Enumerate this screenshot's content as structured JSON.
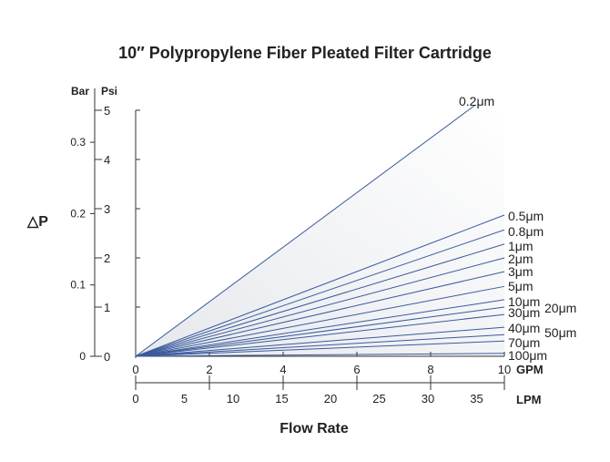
{
  "chart_data": {
    "type": "line",
    "title": "10″  Polypropylene Fiber Pleated Filter Cartridge",
    "xlabel": "Flow Rate",
    "ylabel": "△P",
    "x_unit": "GPM",
    "x2_unit": "LPM",
    "y_unit_left": "Bar",
    "y_unit_right": "Psi",
    "xlim": [
      0,
      10
    ],
    "ylim": [
      0,
      5
    ],
    "x_ticks": [
      "0",
      "2",
      "4",
      "6",
      "8",
      "10"
    ],
    "x2_ticks": [
      "0",
      "5",
      "10",
      "15",
      "20",
      "25",
      "30",
      "35"
    ],
    "x2_tick_values": [
      0,
      5,
      10,
      15,
      20,
      25,
      30,
      35
    ],
    "lpm_per_gpm": 3.785,
    "y_ticks_psi": [
      "0",
      "1",
      "2",
      "3",
      "4",
      "5"
    ],
    "y_ticks_bar": [
      "0",
      "0.1",
      "0.2",
      "0.3"
    ],
    "y_bar_values": [
      0,
      0.1,
      0.2,
      0.3
    ],
    "psi_per_bar": 14.5,
    "grid": false,
    "line_color": "#3a5a9c",
    "series": [
      {
        "name": "0.2μm",
        "x": [
          0,
          9.2
        ],
        "y": [
          0,
          5.1
        ]
      },
      {
        "name": "0.5μm",
        "x": [
          0,
          10
        ],
        "y": [
          0,
          2.87
        ]
      },
      {
        "name": "0.8μm",
        "x": [
          0,
          10
        ],
        "y": [
          0,
          2.57
        ]
      },
      {
        "name": "1μm",
        "x": [
          0,
          10
        ],
        "y": [
          0,
          2.28
        ]
      },
      {
        "name": "2μm",
        "x": [
          0,
          10
        ],
        "y": [
          0,
          2.0
        ]
      },
      {
        "name": "3μm",
        "x": [
          0,
          10
        ],
        "y": [
          0,
          1.72
        ]
      },
      {
        "name": "5μm",
        "x": [
          0,
          10
        ],
        "y": [
          0,
          1.42
        ]
      },
      {
        "name": "10μm",
        "x": [
          0,
          10
        ],
        "y": [
          0,
          1.15
        ]
      },
      {
        "name": "20μm",
        "x": [
          0,
          10
        ],
        "y": [
          0,
          1.0
        ]
      },
      {
        "name": "30μm",
        "x": [
          0,
          10
        ],
        "y": [
          0,
          0.85
        ]
      },
      {
        "name": "40μm",
        "x": [
          0,
          10
        ],
        "y": [
          0,
          0.59
        ]
      },
      {
        "name": "50μm",
        "x": [
          0,
          10
        ],
        "y": [
          0,
          0.44
        ]
      },
      {
        "name": "70μm",
        "x": [
          0,
          10
        ],
        "y": [
          0,
          0.31
        ]
      },
      {
        "name": "100μm",
        "x": [
          0,
          10
        ],
        "y": [
          0,
          0.06
        ]
      }
    ]
  }
}
